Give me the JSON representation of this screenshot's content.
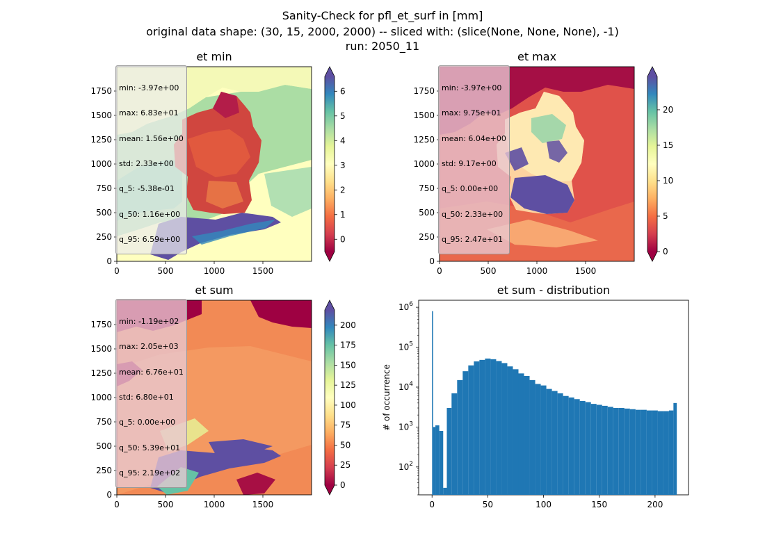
{
  "figure": {
    "title_line1": "Sanity-Check for pfl_et_surf in [mm]",
    "title_line2": "original data shape: (30, 15, 2000, 2000) -- sliced with: (slice(None, None, None), -1)",
    "title_line3": "run: 2050_11"
  },
  "chart_data": [
    {
      "type": "heatmap",
      "title": "et min",
      "x_ticks": [
        0,
        500,
        1000,
        1500
      ],
      "y_ticks": [
        0,
        250,
        500,
        750,
        1000,
        1250,
        1500,
        1750
      ],
      "xlim": [
        0,
        2000
      ],
      "ylim": [
        0,
        2000
      ],
      "colormap": "Spectral",
      "colorbar": {
        "ticks": [
          0,
          1,
          2,
          3,
          4,
          5,
          6
        ],
        "range": [
          -0.5,
          6.6
        ],
        "extend": "both"
      },
      "stats": [
        "min: -3.97e+00",
        "max: 6.83e+01",
        "mean: 1.56e+00",
        "std: 2.33e+00",
        "q_5: -5.38e-01",
        "q_50: 1.16e+00",
        "q_95: 6.59e+00"
      ]
    },
    {
      "type": "heatmap",
      "title": "et max",
      "x_ticks": [
        0,
        500,
        1000,
        1500
      ],
      "y_ticks": [
        0,
        250,
        500,
        750,
        1000,
        1250,
        1500,
        1750
      ],
      "xlim": [
        0,
        2000
      ],
      "ylim": [
        0,
        2000
      ],
      "colormap": "Spectral",
      "colorbar": {
        "ticks": [
          0,
          5,
          10,
          15,
          20
        ],
        "range": [
          0,
          24.7
        ],
        "extend": "both"
      },
      "stats": [
        "min: -3.97e+00",
        "max: 9.75e+01",
        "mean: 6.04e+00",
        "std: 9.17e+00",
        "q_5: 0.00e+00",
        "q_50: 2.33e+00",
        "q_95: 2.47e+01"
      ]
    },
    {
      "type": "heatmap",
      "title": "et sum",
      "x_ticks": [
        0,
        500,
        1000,
        1500
      ],
      "y_ticks": [
        0,
        250,
        500,
        750,
        1000,
        1250,
        1500,
        1750
      ],
      "xlim": [
        0,
        2000
      ],
      "ylim": [
        0,
        2000
      ],
      "colormap": "Spectral",
      "colorbar": {
        "ticks": [
          0,
          25,
          50,
          75,
          100,
          125,
          150,
          175,
          200
        ],
        "range": [
          0,
          219
        ],
        "extend": "both"
      },
      "stats": [
        "min: -1.19e+02",
        "max: 2.05e+03",
        "mean: 6.76e+01",
        "std: 6.80e+01",
        "q_5: 0.00e+00",
        "q_50: 5.39e+01",
        "q_95: 2.19e+02"
      ]
    },
    {
      "type": "bar",
      "title": "et sum - distribution",
      "ylabel": "# of occurrence",
      "yscale": "log",
      "x_ticks": [
        0,
        50,
        100,
        150,
        200
      ],
      "y_ticks": [
        100,
        1000,
        10000,
        100000,
        1000000
      ],
      "xlim": [
        -12,
        230
      ],
      "ylim": [
        20,
        1500000
      ],
      "bar_color": "#1f77b4",
      "x": [
        0.5,
        1.5,
        4.5,
        8.5,
        11.5,
        15,
        20,
        25,
        30,
        35,
        40,
        45,
        50,
        55,
        60,
        65,
        70,
        75,
        80,
        85,
        90,
        95,
        100,
        105,
        110,
        115,
        120,
        125,
        130,
        135,
        140,
        145,
        150,
        155,
        160,
        165,
        170,
        175,
        180,
        185,
        190,
        195,
        200,
        205,
        210,
        215,
        218
      ],
      "values": [
        800000,
        1000,
        1100,
        800,
        30,
        3000,
        7000,
        15000,
        25000,
        35000,
        44000,
        48000,
        52000,
        50000,
        45000,
        40000,
        33000,
        28000,
        22000,
        19000,
        15000,
        12000,
        11000,
        9000,
        8000,
        7000,
        6000,
        5500,
        5000,
        4500,
        4200,
        3800,
        3600,
        3400,
        3200,
        3000,
        3000,
        2900,
        2800,
        2700,
        2700,
        2600,
        2600,
        2500,
        2500,
        2600,
        4000
      ]
    }
  ]
}
